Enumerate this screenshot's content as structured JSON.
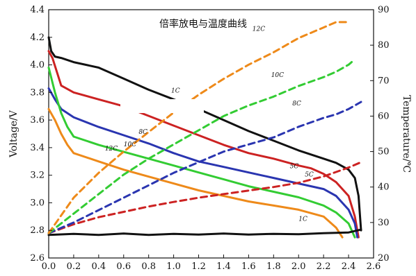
{
  "chart_data": {
    "type": "line",
    "title": "倍率放电与温度曲线",
    "xlabel": "",
    "ylabel": "Voltage/V",
    "y2label": "Temperature/℃",
    "xlim": [
      0.0,
      2.6
    ],
    "ylim": [
      2.6,
      4.4
    ],
    "y2lim": [
      20,
      90
    ],
    "x_ticks": [
      "0.0",
      "0.2",
      "0.4",
      "0.6",
      "0.8",
      "1.0",
      "1.2",
      "1.4",
      "1.6",
      "1.8",
      "2.0",
      "2.2",
      "2.4",
      "2.6"
    ],
    "y_ticks": [
      "2.6",
      "2.8",
      "3.0",
      "3.2",
      "3.4",
      "3.6",
      "3.8",
      "4.0",
      "4.2",
      "4.4"
    ],
    "y2_ticks": [
      "20",
      "30",
      "40",
      "50",
      "60",
      "70",
      "80",
      "90"
    ],
    "grid": false,
    "series": [
      {
        "name": "1C",
        "axis": "voltage",
        "style": "solid",
        "color": "#111111",
        "x": [
          0.0,
          0.02,
          0.05,
          0.1,
          0.2,
          0.4,
          0.6,
          0.8,
          1.0,
          1.2,
          1.4,
          1.6,
          1.8,
          2.0,
          2.2,
          2.3,
          2.4,
          2.45,
          2.48,
          2.5
        ],
        "y": [
          4.2,
          4.1,
          4.06,
          4.05,
          4.02,
          3.98,
          3.9,
          3.82,
          3.75,
          3.68,
          3.6,
          3.52,
          3.45,
          3.38,
          3.32,
          3.29,
          3.24,
          3.18,
          3.05,
          2.8
        ]
      },
      {
        "name": "5C",
        "axis": "voltage",
        "style": "solid",
        "color": "#cc2222",
        "x": [
          0.0,
          0.03,
          0.1,
          0.2,
          0.4,
          0.6,
          0.8,
          1.0,
          1.2,
          1.4,
          1.6,
          1.8,
          2.0,
          2.1,
          2.2,
          2.3,
          2.4,
          2.45,
          2.48
        ],
        "y": [
          4.1,
          4.05,
          3.85,
          3.8,
          3.75,
          3.7,
          3.63,
          3.56,
          3.49,
          3.42,
          3.36,
          3.32,
          3.27,
          3.25,
          3.21,
          3.15,
          3.05,
          2.9,
          2.75
        ]
      },
      {
        "name": "8C",
        "axis": "voltage",
        "style": "solid",
        "color": "#2a35b0",
        "x": [
          0.0,
          0.05,
          0.1,
          0.2,
          0.4,
          0.6,
          0.8,
          1.0,
          1.2,
          1.4,
          1.6,
          1.8,
          2.0,
          2.2,
          2.3,
          2.4,
          2.45,
          2.47
        ],
        "y": [
          3.83,
          3.75,
          3.68,
          3.62,
          3.55,
          3.49,
          3.43,
          3.36,
          3.3,
          3.26,
          3.22,
          3.18,
          3.14,
          3.1,
          3.05,
          2.95,
          2.85,
          2.75
        ]
      },
      {
        "name": "10C",
        "axis": "voltage",
        "style": "solid",
        "color": "#33cc33",
        "x": [
          0.0,
          0.05,
          0.1,
          0.15,
          0.2,
          0.4,
          0.6,
          0.8,
          1.0,
          1.2,
          1.4,
          1.6,
          1.8,
          2.0,
          2.2,
          2.3,
          2.4,
          2.45
        ],
        "y": [
          3.98,
          3.8,
          3.65,
          3.55,
          3.48,
          3.42,
          3.37,
          3.32,
          3.27,
          3.22,
          3.17,
          3.12,
          3.08,
          3.04,
          2.98,
          2.93,
          2.85,
          2.75
        ]
      },
      {
        "name": "12C",
        "axis": "voltage",
        "style": "solid",
        "color": "#ee8a1a",
        "x": [
          0.0,
          0.05,
          0.1,
          0.15,
          0.2,
          0.4,
          0.6,
          0.8,
          1.0,
          1.2,
          1.4,
          1.6,
          1.8,
          2.0,
          2.2,
          2.3,
          2.35
        ],
        "y": [
          3.68,
          3.6,
          3.5,
          3.42,
          3.36,
          3.3,
          3.24,
          3.19,
          3.14,
          3.09,
          3.05,
          3.01,
          2.98,
          2.95,
          2.9,
          2.82,
          2.75
        ]
      },
      {
        "name": "1C",
        "axis": "temperature",
        "style": "solid",
        "color": "#111111",
        "x": [
          0.0,
          0.2,
          0.4,
          0.6,
          0.8,
          1.0,
          1.2,
          1.4,
          1.6,
          1.8,
          2.0,
          2.2,
          2.4,
          2.5
        ],
        "y": [
          26.5,
          26.8,
          26.5,
          26.9,
          26.5,
          26.8,
          26.6,
          26.9,
          26.6,
          26.8,
          26.7,
          27.0,
          27.2,
          28.0
        ]
      },
      {
        "name": "5C",
        "axis": "temperature",
        "style": "dashed",
        "color": "#cc2222",
        "x": [
          0.0,
          0.2,
          0.4,
          0.6,
          0.8,
          1.0,
          1.2,
          1.4,
          1.6,
          1.8,
          2.0,
          2.2,
          2.4,
          2.5
        ],
        "y": [
          27,
          29.5,
          31.5,
          33,
          34.5,
          35.8,
          37,
          38,
          39,
          40,
          41.2,
          43,
          45.5,
          47
        ]
      },
      {
        "name": "8C",
        "axis": "temperature",
        "style": "dashed",
        "color": "#2a35b0",
        "x": [
          0.0,
          0.2,
          0.4,
          0.6,
          0.8,
          1.0,
          1.2,
          1.4,
          1.6,
          1.8,
          2.0,
          2.2,
          2.3,
          2.4,
          2.5
        ],
        "y": [
          27,
          30,
          33.5,
          37,
          40.5,
          44,
          47,
          50,
          52,
          54,
          57,
          59.5,
          60.5,
          62,
          64
        ]
      },
      {
        "name": "10C",
        "axis": "temperature",
        "style": "dashed",
        "color": "#33cc33",
        "x": [
          0.0,
          0.2,
          0.4,
          0.6,
          0.8,
          1.0,
          1.2,
          1.4,
          1.6,
          1.8,
          2.0,
          2.2,
          2.3,
          2.4,
          2.45
        ],
        "y": [
          27,
          32.5,
          38,
          43.5,
          48,
          52,
          56,
          60,
          63,
          65.5,
          68.5,
          71,
          72.5,
          74.5,
          76
        ]
      },
      {
        "name": "12C",
        "axis": "temperature",
        "style": "dashed",
        "color": "#ee8a1a",
        "x": [
          0.0,
          0.2,
          0.4,
          0.6,
          0.8,
          1.0,
          1.2,
          1.4,
          1.6,
          1.8,
          2.0,
          2.2,
          2.3,
          2.4
        ],
        "y": [
          27,
          37,
          44,
          50,
          55.5,
          61,
          66,
          70.5,
          74.5,
          78,
          82,
          85,
          86.5,
          86.5
        ]
      }
    ],
    "annotations": [
      {
        "text": "1C",
        "x": 0.98,
        "y": 3.8,
        "axis": "voltage"
      },
      {
        "text": "5C",
        "x": 1.93,
        "y": 3.25,
        "axis": "voltage"
      },
      {
        "text": "8C",
        "x": 0.72,
        "y": 3.5,
        "axis": "voltage"
      },
      {
        "text": "10C",
        "x": 0.6,
        "y": 3.41,
        "axis": "voltage"
      },
      {
        "text": "12C",
        "x": 0.45,
        "y": 3.38,
        "axis": "voltage"
      },
      {
        "text": "1C",
        "x": 2.0,
        "y": 2.87,
        "axis": "voltage"
      },
      {
        "text": "5C",
        "x": 2.05,
        "y": 43,
        "axis": "temperature"
      },
      {
        "text": "8C",
        "x": 1.95,
        "y": 63,
        "axis": "temperature"
      },
      {
        "text": "10C",
        "x": 1.78,
        "y": 71,
        "axis": "temperature"
      },
      {
        "text": "12C",
        "x": 1.63,
        "y": 84,
        "axis": "temperature"
      }
    ]
  }
}
